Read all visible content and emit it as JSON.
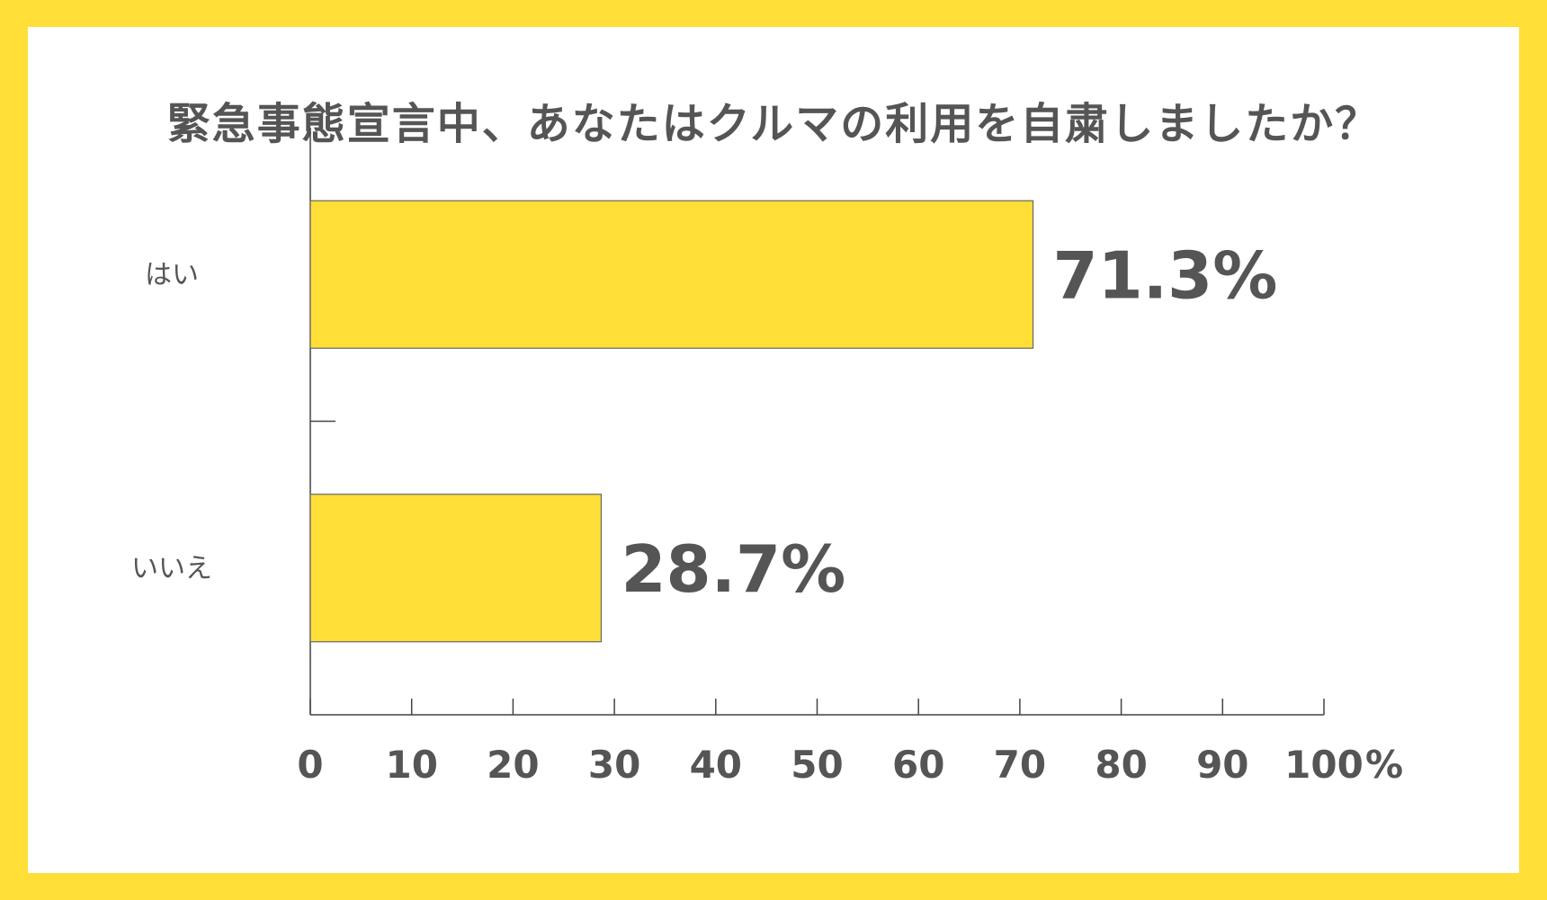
{
  "colors": {
    "background": "#ffde37",
    "bar": "#ffde37",
    "text": "#555555",
    "axis": "#444444"
  },
  "chart_data": {
    "type": "bar",
    "orientation": "horizontal",
    "title": "緊急事態宣言中、あなたはクルマの利用を自粛しましたか？",
    "categories": [
      "はい",
      "いいえ"
    ],
    "values": [
      71.3,
      28.7
    ],
    "data_labels": [
      "71.3%",
      "28.7%"
    ],
    "xlim": [
      0,
      100
    ],
    "xticks": [
      0,
      10,
      20,
      30,
      40,
      50,
      60,
      70,
      80,
      90,
      100
    ],
    "x_unit": "%",
    "grid": false,
    "legend": "none"
  }
}
